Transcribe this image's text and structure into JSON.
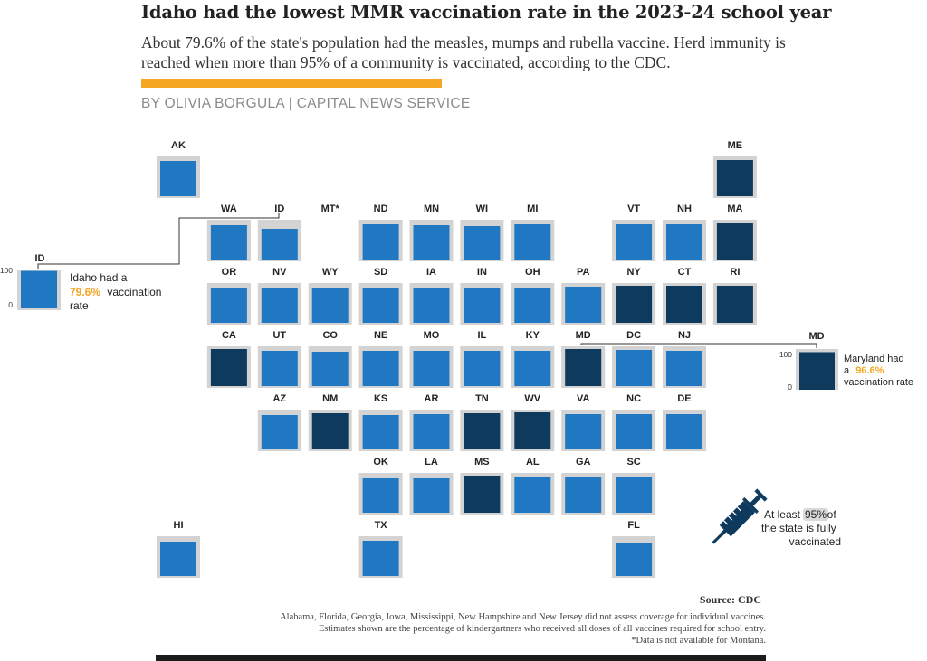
{
  "header": {
    "title": "Idaho had the lowest MMR vaccination rate in the 2023-24 school year",
    "subtitle": "About 79.6% of the state's population had the measles, mumps and rubella vaccine. Herd immunity is reached when more than 95% of a community is vaccinated, according to the CDC.",
    "byline": "BY OLIVIA BORGULA | CAPITAL NEWS SERVICE"
  },
  "colors": {
    "below_threshold": "#1f78c1",
    "above_threshold": "#0e3a5e",
    "tile_background": "#d3d3d3",
    "highlight": "#f5a623",
    "syringe": "#0e3a5e"
  },
  "chart_data": {
    "type": "tile-grid-map",
    "threshold": 95,
    "ylim": [
      0,
      100
    ],
    "states": [
      {
        "code": "AK",
        "row": 0,
        "col": 0,
        "value": 91.5,
        "above": false
      },
      {
        "code": "ME",
        "row": 0,
        "col": 11,
        "value": 95.5,
        "above": true
      },
      {
        "code": "WA",
        "row": 1,
        "col": 1,
        "value": 90.5,
        "above": false
      },
      {
        "code": "ID",
        "row": 1,
        "col": 2,
        "value": 79.6,
        "above": false
      },
      {
        "code": "MT*",
        "row": 1,
        "col": 3,
        "value": null,
        "above": false
      },
      {
        "code": "ND",
        "row": 1,
        "col": 4,
        "value": 92.5,
        "above": false
      },
      {
        "code": "MN",
        "row": 1,
        "col": 5,
        "value": 90.5,
        "above": false
      },
      {
        "code": "WI",
        "row": 1,
        "col": 6,
        "value": 88.5,
        "above": false
      },
      {
        "code": "MI",
        "row": 1,
        "col": 7,
        "value": 92.5,
        "above": false
      },
      {
        "code": "VT",
        "row": 1,
        "col": 9,
        "value": 92.5,
        "above": false
      },
      {
        "code": "NH",
        "row": 1,
        "col": 10,
        "value": 92.0,
        "above": false
      },
      {
        "code": "MA",
        "row": 1,
        "col": 11,
        "value": 96.0,
        "above": true
      },
      {
        "code": "OR",
        "row": 2,
        "col": 1,
        "value": 91.0,
        "above": false
      },
      {
        "code": "NV",
        "row": 2,
        "col": 2,
        "value": 91.5,
        "above": false
      },
      {
        "code": "WY",
        "row": 2,
        "col": 3,
        "value": 91.5,
        "above": false
      },
      {
        "code": "SD",
        "row": 2,
        "col": 4,
        "value": 91.5,
        "above": false
      },
      {
        "code": "IA",
        "row": 2,
        "col": 5,
        "value": 91.5,
        "above": false
      },
      {
        "code": "IN",
        "row": 2,
        "col": 6,
        "value": 91.5,
        "above": false
      },
      {
        "code": "OH",
        "row": 2,
        "col": 7,
        "value": 91.0,
        "above": false
      },
      {
        "code": "PA",
        "row": 2,
        "col": 8,
        "value": 94.5,
        "above": false
      },
      {
        "code": "NY",
        "row": 2,
        "col": 9,
        "value": 97.5,
        "above": true
      },
      {
        "code": "CT",
        "row": 2,
        "col": 10,
        "value": 97.0,
        "above": true
      },
      {
        "code": "RI",
        "row": 2,
        "col": 11,
        "value": 97.0,
        "above": true
      },
      {
        "code": "CA",
        "row": 3,
        "col": 1,
        "value": 96.5,
        "above": true
      },
      {
        "code": "UT",
        "row": 3,
        "col": 2,
        "value": 91.5,
        "above": false
      },
      {
        "code": "CO",
        "row": 3,
        "col": 3,
        "value": 91.0,
        "above": false
      },
      {
        "code": "NE",
        "row": 3,
        "col": 4,
        "value": 92.0,
        "above": false
      },
      {
        "code": "MO",
        "row": 3,
        "col": 5,
        "value": 92.0,
        "above": false
      },
      {
        "code": "IL",
        "row": 3,
        "col": 6,
        "value": 92.5,
        "above": false
      },
      {
        "code": "KY",
        "row": 3,
        "col": 7,
        "value": 92.0,
        "above": false
      },
      {
        "code": "MD",
        "row": 3,
        "col": 8,
        "value": 96.6,
        "above": true
      },
      {
        "code": "DC",
        "row": 3,
        "col": 9,
        "value": 94.0,
        "above": false
      },
      {
        "code": "NJ",
        "row": 3,
        "col": 10,
        "value": 93.0,
        "above": false
      },
      {
        "code": "AZ",
        "row": 4,
        "col": 2,
        "value": 90.0,
        "above": false
      },
      {
        "code": "NM",
        "row": 4,
        "col": 3,
        "value": 95.5,
        "above": true
      },
      {
        "code": "KS",
        "row": 4,
        "col": 4,
        "value": 90.5,
        "above": false
      },
      {
        "code": "AR",
        "row": 4,
        "col": 5,
        "value": 92.0,
        "above": false
      },
      {
        "code": "TN",
        "row": 4,
        "col": 6,
        "value": 95.5,
        "above": true
      },
      {
        "code": "WV",
        "row": 4,
        "col": 7,
        "value": 98.0,
        "above": true
      },
      {
        "code": "VA",
        "row": 4,
        "col": 8,
        "value": 93.0,
        "above": false
      },
      {
        "code": "NC",
        "row": 4,
        "col": 9,
        "value": 93.5,
        "above": false
      },
      {
        "code": "DE",
        "row": 4,
        "col": 10,
        "value": 92.5,
        "above": false
      },
      {
        "code": "OK",
        "row": 5,
        "col": 4,
        "value": 90.5,
        "above": false
      },
      {
        "code": "LA",
        "row": 5,
        "col": 5,
        "value": 91.0,
        "above": false
      },
      {
        "code": "MS",
        "row": 5,
        "col": 6,
        "value": 98.5,
        "above": true
      },
      {
        "code": "AL",
        "row": 5,
        "col": 7,
        "value": 92.5,
        "above": false
      },
      {
        "code": "GA",
        "row": 5,
        "col": 8,
        "value": 91.5,
        "above": false
      },
      {
        "code": "SC",
        "row": 5,
        "col": 9,
        "value": 93.5,
        "above": false
      },
      {
        "code": "HI",
        "row": 6,
        "col": 0,
        "value": 89.0,
        "above": false
      },
      {
        "code": "TX",
        "row": 6,
        "col": 4,
        "value": 91.5,
        "above": false
      },
      {
        "code": "FL",
        "row": 6,
        "col": 9,
        "value": 88.5,
        "above": false
      }
    ]
  },
  "callouts": {
    "idaho": {
      "state": "ID",
      "value": 79.6,
      "axis_max": "100",
      "axis_min": "0",
      "text_before": "Idaho had a",
      "rate": "79.6%",
      "text_after_line1": "vaccination",
      "text_after_line2": "rate"
    },
    "maryland": {
      "state": "MD",
      "value": 96.6,
      "axis_max": "100",
      "axis_min": "0",
      "text_before": "Maryland had",
      "text_a": "a",
      "rate": "96.6%",
      "text_after": "vaccination rate"
    }
  },
  "legend": {
    "line1_pre": "At least",
    "line1_value": "95%",
    "line1_post": "of",
    "line2": "the state is fully",
    "line3": "vaccinated"
  },
  "footer": {
    "source": "Source: CDC",
    "note1": "Alabama, Florida, Georgia, Iowa, Mississippi, New Hampshire and New Jersey did not assess coverage for individual vaccines.",
    "note2": "Estimates shown are the percentage of kindergartners who received all doses of all vaccines required for school entry.",
    "note3": "*Data is not available for Montana."
  }
}
